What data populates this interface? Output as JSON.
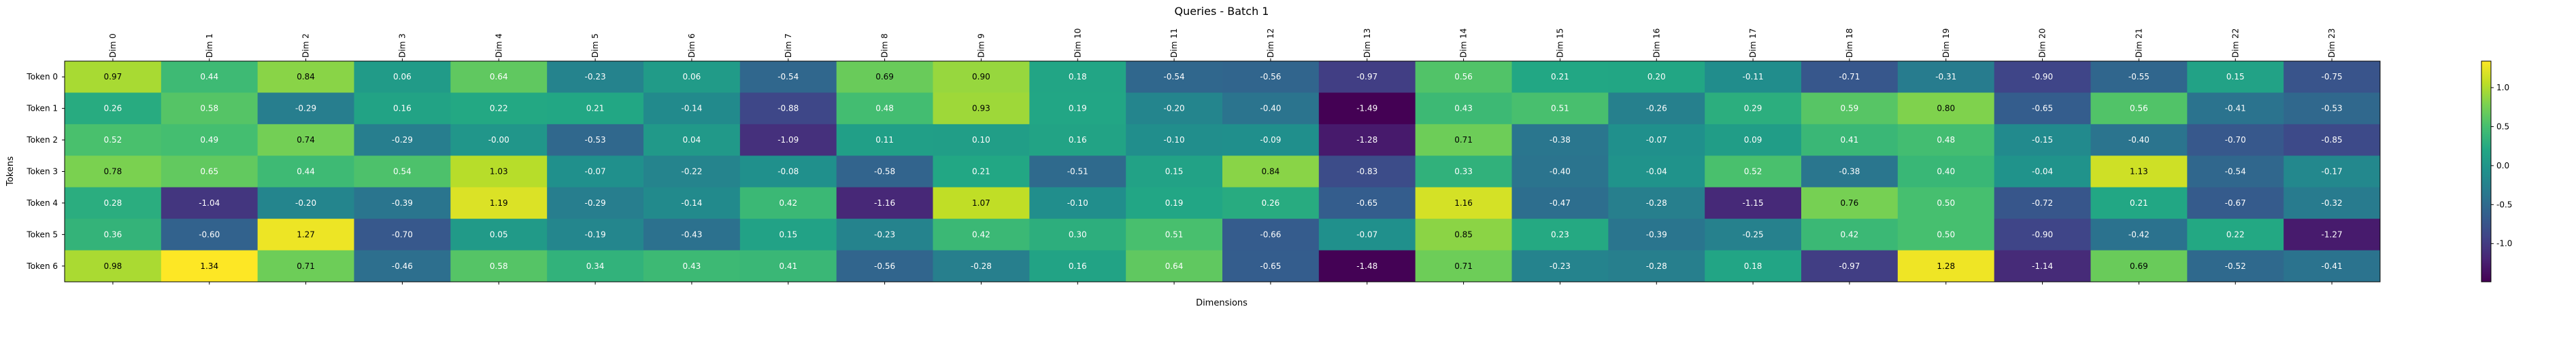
{
  "chart_data": {
    "type": "heatmap",
    "title": "Queries - Batch 1",
    "xlabel": "Dimensions",
    "ylabel": "Tokens",
    "x_categories": [
      "Dim 0",
      "Dim 1",
      "Dim 2",
      "Dim 3",
      "Dim 4",
      "Dim 5",
      "Dim 6",
      "Dim 7",
      "Dim 8",
      "Dim 9",
      "Dim 10",
      "Dim 11",
      "Dim 12",
      "Dim 13",
      "Dim 14",
      "Dim 15",
      "Dim 16",
      "Dim 17",
      "Dim 18",
      "Dim 19",
      "Dim 20",
      "Dim 21",
      "Dim 22",
      "Dim 23"
    ],
    "y_categories": [
      "Token 0",
      "Token 1",
      "Token 2",
      "Token 3",
      "Token 4",
      "Token 5",
      "Token 6"
    ],
    "values": [
      [
        0.97,
        0.44,
        0.84,
        0.06,
        0.64,
        -0.23,
        0.06,
        -0.54,
        0.69,
        0.9,
        0.18,
        -0.54,
        -0.56,
        -0.97,
        0.56,
        0.21,
        0.2,
        -0.11,
        -0.71,
        -0.31,
        -0.9,
        -0.55,
        0.15,
        -0.75
      ],
      [
        0.26,
        0.58,
        -0.29,
        0.16,
        0.22,
        0.21,
        -0.14,
        -0.88,
        0.48,
        0.93,
        0.19,
        -0.2,
        -0.4,
        -1.49,
        0.43,
        0.51,
        -0.26,
        0.29,
        0.59,
        0.8,
        -0.65,
        0.56,
        -0.41,
        -0.53
      ],
      [
        0.52,
        0.49,
        0.74,
        -0.29,
        -0.0,
        -0.53,
        0.04,
        -1.09,
        0.11,
        0.1,
        0.16,
        -0.1,
        -0.09,
        -1.28,
        0.71,
        -0.38,
        -0.07,
        0.09,
        0.41,
        0.48,
        -0.15,
        -0.4,
        -0.7,
        -0.85
      ],
      [
        0.78,
        0.65,
        0.44,
        0.54,
        1.03,
        -0.07,
        -0.22,
        -0.08,
        -0.58,
        0.21,
        -0.51,
        0.15,
        0.84,
        -0.83,
        0.33,
        -0.4,
        -0.04,
        0.52,
        -0.38,
        0.4,
        -0.04,
        1.13,
        -0.54,
        -0.17
      ],
      [
        0.28,
        -1.04,
        -0.2,
        -0.39,
        1.19,
        -0.29,
        -0.14,
        0.42,
        -1.16,
        1.07,
        -0.1,
        0.19,
        0.26,
        -0.65,
        1.16,
        -0.47,
        -0.28,
        -1.15,
        0.76,
        0.5,
        -0.72,
        0.21,
        -0.67,
        -0.32
      ],
      [
        0.36,
        -0.6,
        1.27,
        -0.7,
        0.05,
        -0.19,
        -0.43,
        0.15,
        -0.23,
        0.42,
        0.3,
        0.51,
        -0.66,
        -0.07,
        0.85,
        0.23,
        -0.39,
        -0.25,
        0.42,
        0.5,
        -0.9,
        -0.42,
        0.22,
        -1.27
      ],
      [
        0.98,
        1.34,
        0.71,
        -0.46,
        0.58,
        0.34,
        0.43,
        0.41,
        -0.56,
        -0.28,
        0.16,
        0.64,
        -0.65,
        -1.48,
        0.71,
        -0.23,
        -0.28,
        0.18,
        -0.97,
        1.28,
        -1.14,
        0.69,
        -0.52,
        -0.41
      ]
    ],
    "colormap": "viridis",
    "vmin": -1.49,
    "vmax": 1.34,
    "colorbar_ticks": [
      "1.0",
      "0.5",
      "0.0",
      "-0.5",
      "-1.0"
    ],
    "colorbar_tick_values": [
      1.0,
      0.5,
      0.0,
      -0.5,
      -1.0
    ]
  }
}
